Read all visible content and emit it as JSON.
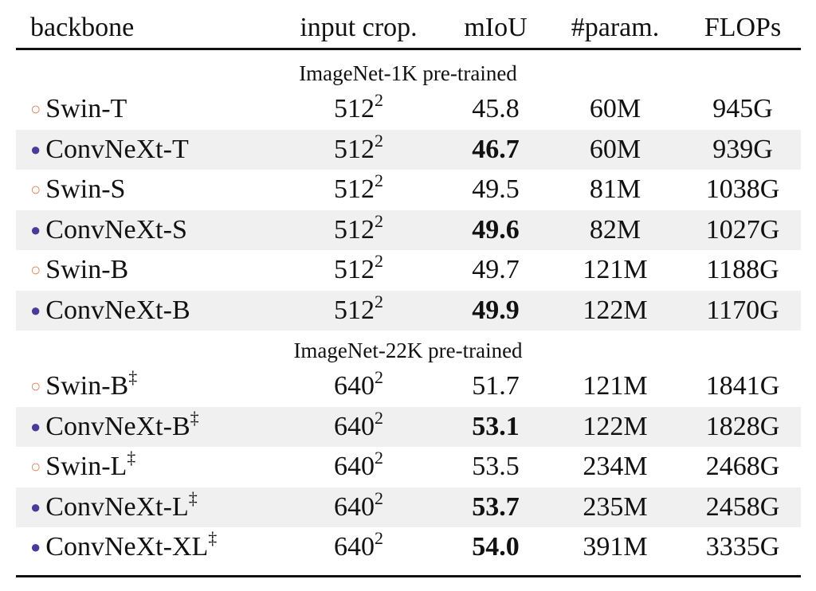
{
  "header": [
    "backbone",
    "input crop.",
    "mIoU",
    "#param.",
    "FLOPs"
  ],
  "sections": [
    {
      "title": "ImageNet-1K pre-trained",
      "rows": [
        {
          "marker": "○",
          "marker_color": "#e0875a",
          "name": "Swin-T",
          "crop": "512",
          "crop_sup": "2",
          "miou": "45.8",
          "bold": false,
          "params": "60M",
          "flops": "945G"
        },
        {
          "marker": "●",
          "marker_color": "#4a3a99",
          "name": "ConvNeXt-T",
          "crop": "512",
          "crop_sup": "2",
          "miou": "46.7",
          "bold": true,
          "params": "60M",
          "flops": "939G"
        },
        {
          "marker": "○",
          "marker_color": "#e0875a",
          "name": "Swin-S",
          "crop": "512",
          "crop_sup": "2",
          "miou": "49.5",
          "bold": false,
          "params": "81M",
          "flops": "1038G"
        },
        {
          "marker": "●",
          "marker_color": "#4a3a99",
          "name": "ConvNeXt-S",
          "crop": "512",
          "crop_sup": "2",
          "miou": "49.6",
          "bold": true,
          "params": "82M",
          "flops": "1027G"
        },
        {
          "marker": "○",
          "marker_color": "#e0875a",
          "name": "Swin-B",
          "crop": "512",
          "crop_sup": "2",
          "miou": "49.7",
          "bold": false,
          "params": "121M",
          "flops": "1188G"
        },
        {
          "marker": "●",
          "marker_color": "#4a3a99",
          "name": "ConvNeXt-B",
          "crop": "512",
          "crop_sup": "2",
          "miou": "49.9",
          "bold": true,
          "params": "122M",
          "flops": "1170G"
        }
      ]
    },
    {
      "title": "ImageNet-22K pre-trained",
      "rows": [
        {
          "marker": "○",
          "marker_color": "#e0875a",
          "name": "Swin-B",
          "name_sup": "‡",
          "crop": "640",
          "crop_sup": "2",
          "miou": "51.7",
          "bold": false,
          "params": "121M",
          "flops": "1841G"
        },
        {
          "marker": "●",
          "marker_color": "#4a3a99",
          "name": "ConvNeXt-B",
          "name_sup": "‡",
          "crop": "640",
          "crop_sup": "2",
          "miou": "53.1",
          "bold": true,
          "params": "122M",
          "flops": "1828G"
        },
        {
          "marker": "○",
          "marker_color": "#e0875a",
          "name": "Swin-L",
          "name_sup": "‡",
          "crop": "640",
          "crop_sup": "2",
          "miou": "53.5",
          "bold": false,
          "params": "234M",
          "flops": "2468G"
        },
        {
          "marker": "●",
          "marker_color": "#4a3a99",
          "name": "ConvNeXt-L",
          "name_sup": "‡",
          "crop": "640",
          "crop_sup": "2",
          "miou": "53.7",
          "bold": true,
          "params": "235M",
          "flops": "2458G"
        },
        {
          "marker": "●",
          "marker_color": "#4a3a99",
          "name": "ConvNeXt-XL",
          "name_sup": "‡",
          "crop": "640",
          "crop_sup": "2",
          "miou": "54.0",
          "bold": true,
          "params": "391M",
          "flops": "3335G"
        }
      ]
    }
  ]
}
